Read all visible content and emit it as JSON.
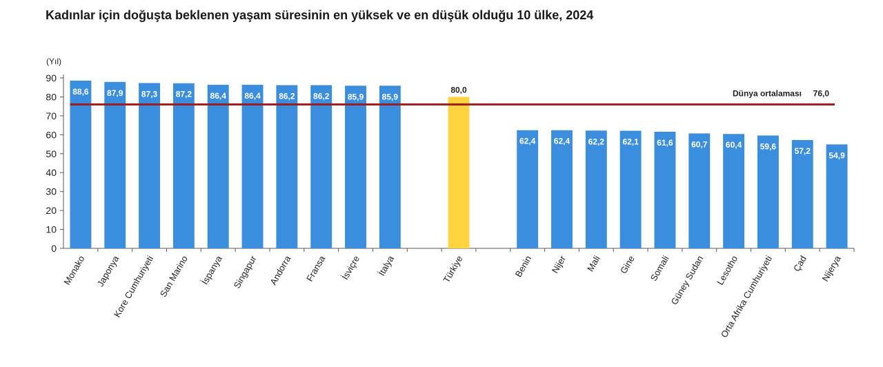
{
  "chart_data": {
    "type": "bar",
    "title": "Kadınlar için doğuşta beklenen yaşam süresinin en yüksek ve en düşük olduğu 10 ülke, 2024",
    "unit_label": "(Yıl)",
    "ylim": [
      0,
      90
    ],
    "yticks": [
      0,
      10,
      20,
      30,
      40,
      50,
      60,
      70,
      80,
      90
    ],
    "categories": [
      "Monako",
      "Japonya",
      "Kore Cumhuriyeti",
      "San Marino",
      "İspanya",
      "Singapur",
      "Andorra",
      "Fransa",
      "İsviçre",
      "İtalya",
      "",
      "Türkiye",
      "",
      "Benin",
      "Nijer",
      "Mali",
      "Gine",
      "Somali",
      "Güney Sudan",
      "Lesotho",
      "Orta Afrika Cumhuriyeti",
      "Çad",
      "Nijerya"
    ],
    "values": [
      88.6,
      87.9,
      87.3,
      87.2,
      86.4,
      86.4,
      86.2,
      86.2,
      85.9,
      85.9,
      null,
      80.0,
      null,
      62.4,
      62.4,
      62.2,
      62.1,
      61.6,
      60.7,
      60.4,
      59.6,
      57.2,
      54.9
    ],
    "value_labels": [
      "88,6",
      "87,9",
      "87,3",
      "87,2",
      "86,4",
      "86,4",
      "86,2",
      "86,2",
      "85,9",
      "85,9",
      "",
      "80,0",
      "",
      "62,4",
      "62,4",
      "62,2",
      "62,1",
      "61,6",
      "60,7",
      "60,4",
      "59,6",
      "57,2",
      "54,9"
    ],
    "highlight_category": "Türkiye",
    "colors": {
      "bar": "#3b8ede",
      "highlight": "#ffd23f",
      "reference_line": "#9b1c1c"
    },
    "reference_line": {
      "label": "Dünya ortalaması",
      "value": 76.0,
      "value_label": "76,0"
    },
    "grid": false,
    "legend": "none"
  }
}
